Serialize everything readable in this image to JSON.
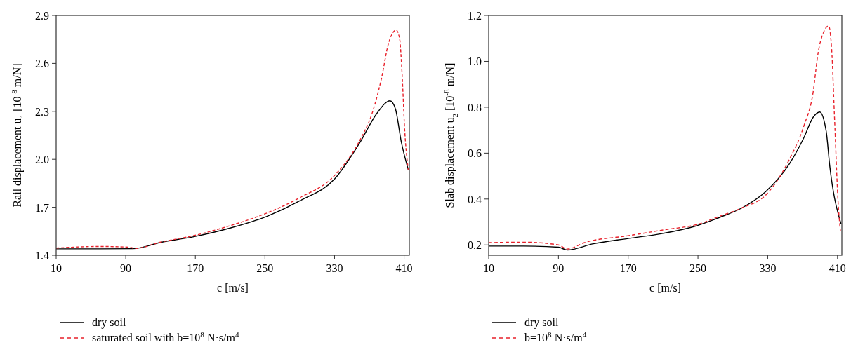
{
  "chart_data": [
    {
      "type": "line",
      "xlabel": "c [m/s]",
      "ylabel": "Rail displacement u$_{1}$ [10$^{-8}$ m/N]",
      "xlim": [
        10,
        416
      ],
      "xticks": [
        10,
        90,
        170,
        250,
        330,
        410
      ],
      "ylim": [
        1.4,
        2.9
      ],
      "yticks": [
        1.4,
        1.7,
        {
          "value": 2,
          "label": "2.0"
        },
        2.3,
        2.6,
        2.9
      ],
      "legend": "bottom",
      "line_style": "solid",
      "series": [
        {
          "name": "dry soil",
          "color": "#000000",
          "x": [
            10,
            60,
            98,
            130,
            170,
            210,
            252.2,
            290,
            330.2,
            359.7,
            378.5,
            393.8,
            400,
            406.7,
            414.8
          ],
          "values": [
            1.44,
            1.44,
            1.441,
            1.48,
            1.518,
            1.57,
            1.643,
            1.74,
            1.878,
            2.11,
            2.286,
            2.366,
            2.316,
            2.11,
            1.935
          ]
        },
        {
          "name": "saturated soil with b=10$^{8}$ N·s/m$^{4}$",
          "color": "#e8202a",
          "line_style": "dashed",
          "x": [
            10,
            60,
            95,
            100,
            130,
            170,
            210,
            252.2,
            290,
            330.2,
            359.7,
            373.1,
            383.9,
            392,
            398.2,
            400.8,
            404.8,
            407.5,
            410.8,
            414.8
          ],
          "values": [
            1.445,
            1.455,
            1.45,
            1.442,
            1.482,
            1.525,
            1.585,
            1.664,
            1.76,
            1.9,
            2.125,
            2.286,
            2.505,
            2.724,
            2.8,
            2.809,
            2.754,
            2.549,
            2.169,
            1.935
          ]
        }
      ]
    },
    {
      "type": "line",
      "xlabel": "c [m/s]",
      "ylabel": "Slab displacement u$_{2}$ [10$^{-8}$ m/N]",
      "xlim": [
        10,
        415
      ],
      "xticks": [
        10,
        90,
        170,
        250,
        330,
        410
      ],
      "ylim": [
        0.155,
        1.2
      ],
      "yticks": [
        0.2,
        0.4,
        0.6,
        0.8,
        {
          "value": 1,
          "label": "1.0"
        },
        1.2
      ],
      "legend": "bottom",
      "line_style": "solid",
      "series": [
        {
          "name": "dry soil",
          "color": "#000000",
          "x": [
            10,
            50,
            90,
            100,
            130,
            170,
            210,
            246.5,
            275,
            300.8,
            327.9,
            355,
            371.3,
            382.2,
            389.7,
            397,
            401.1,
            414.1
          ],
          "values": [
            0.195,
            0.195,
            0.19,
            0.178,
            0.205,
            0.228,
            0.25,
            0.281,
            0.32,
            0.362,
            0.433,
            0.554,
            0.666,
            0.757,
            0.779,
            0.696,
            0.545,
            0.291
          ]
        },
        {
          "name": "b=10$^{8}$ N·s/m$^{4}$",
          "color": "#e8202a",
          "line_style": "dashed",
          "x": [
            10,
            50,
            90,
            100,
            120,
            170,
            210,
            250,
            275,
            300.8,
            327.9,
            355,
            371.3,
            382.2,
            387.5,
            394.4,
            399.8,
            403.3,
            406.6,
            410.6,
            413.3
          ],
          "values": [
            0.21,
            0.212,
            0.2,
            0.182,
            0.21,
            0.24,
            0.265,
            0.29,
            0.325,
            0.362,
            0.418,
            0.574,
            0.717,
            0.869,
            1.03,
            1.13,
            1.155,
            1.053,
            0.753,
            0.393,
            0.26
          ]
        }
      ]
    }
  ]
}
